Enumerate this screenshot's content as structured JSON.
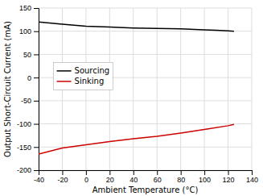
{
  "chart_data": {
    "type": "line",
    "xlabel": "Ambient Temperature (°C)",
    "ylabel": "Output Short-Circuit Current (mA)",
    "xlim": [
      -40,
      140
    ],
    "ylim": [
      -200,
      150
    ],
    "xticks": [
      -40,
      -20,
      0,
      20,
      40,
      60,
      80,
      100,
      120,
      140
    ],
    "yticks": [
      -200,
      -150,
      -100,
      -50,
      0,
      50,
      100,
      150
    ],
    "grid": true,
    "legend": "left",
    "series": [
      {
        "name": "Sourcing",
        "color": "#000000",
        "x": [
          -40,
          -20,
          -10,
          0,
          10,
          20,
          40,
          60,
          80,
          100,
          110,
          120,
          125
        ],
        "values": [
          120,
          115,
          113,
          111,
          110,
          109,
          107,
          106,
          105,
          103,
          102,
          101,
          100
        ]
      },
      {
        "name": "Sinking",
        "color": "#cc0000",
        "x": [
          -40,
          -20,
          0,
          20,
          40,
          60,
          80,
          100,
          120,
          125
        ],
        "values": [
          -165,
          -152,
          -145,
          -138,
          -132,
          -127,
          -120,
          -112,
          -104,
          -101
        ]
      }
    ]
  }
}
